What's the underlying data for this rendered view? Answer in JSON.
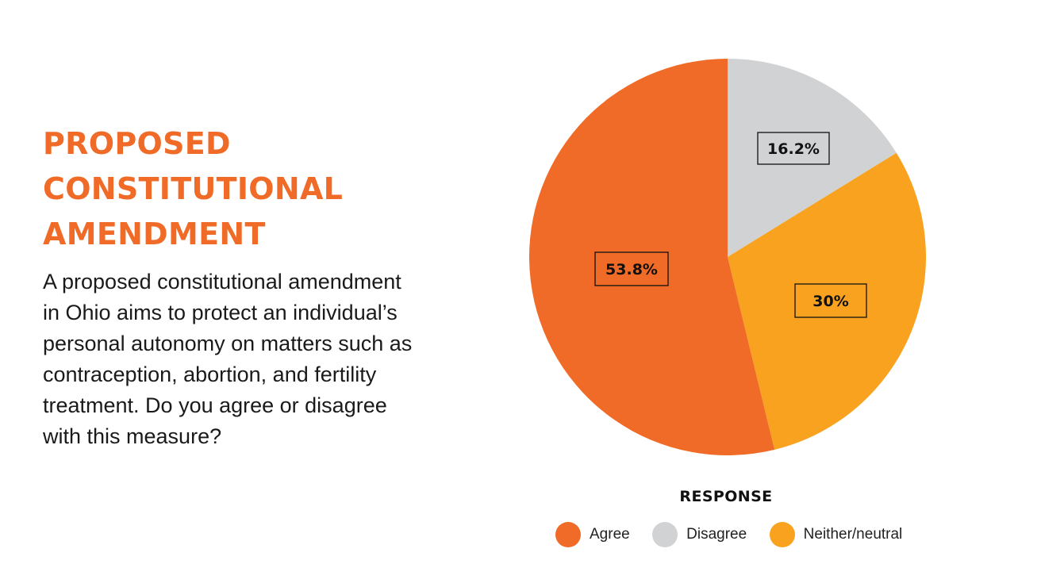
{
  "header": {
    "title_lines": [
      "PROPOSED",
      "CONSTITUTIONAL",
      "AMENDMENT"
    ],
    "question_lines": [
      "A proposed constitutional amendment",
      "in Ohio aims to protect an individual’s",
      "personal autonomy on matters such as",
      "contraception, abortion, and fertility",
      "treatment. Do you agree or disagree",
      "with this measure?"
    ]
  },
  "colors": {
    "title": "#f06b27",
    "agree": "#f06b27",
    "disagree": "#d1d2d4",
    "neutral": "#f8a21f"
  },
  "chart_data": {
    "type": "pie",
    "categories": [
      "Disagree",
      "Neither/neutral",
      "Agree"
    ],
    "values": [
      16.2,
      30,
      53.8
    ],
    "labels": [
      "16.2%",
      "30%",
      "53.8%"
    ],
    "legend_title": "RESPONSE",
    "legend_order": [
      "Agree",
      "Disagree",
      "Neither/neutral"
    ],
    "start": "12 o'clock, clockwise",
    "legend_position": "bottom"
  }
}
